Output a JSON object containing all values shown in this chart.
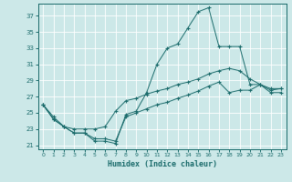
{
  "xlabel": "Humidex (Indice chaleur)",
  "bg_color": "#cce8e8",
  "grid_color": "#ffffff",
  "line_color": "#1a6b6b",
  "xlim": [
    -0.5,
    23.5
  ],
  "ylim": [
    20.5,
    38.5
  ],
  "xticks": [
    0,
    1,
    2,
    3,
    4,
    5,
    6,
    7,
    8,
    9,
    10,
    11,
    12,
    13,
    14,
    15,
    16,
    17,
    18,
    19,
    20,
    21,
    22,
    23
  ],
  "yticks": [
    21,
    23,
    25,
    27,
    29,
    31,
    33,
    35,
    37
  ],
  "curve1_x": [
    0,
    1,
    2,
    3,
    4,
    5,
    6,
    7,
    8,
    9,
    10,
    11,
    12,
    13,
    14,
    15,
    16,
    17,
    18,
    19,
    20,
    21,
    22,
    23
  ],
  "curve1_y": [
    26.0,
    24.2,
    23.3,
    22.5,
    22.5,
    21.5,
    21.5,
    21.2,
    24.8,
    25.2,
    27.5,
    31.0,
    33.0,
    33.5,
    35.5,
    37.5,
    38.0,
    33.2,
    33.2,
    33.2,
    28.5,
    28.5,
    27.5,
    27.5
  ],
  "curve2_x": [
    0,
    1,
    2,
    3,
    4,
    5,
    6,
    7,
    8,
    9,
    10,
    11,
    12,
    13,
    14,
    15,
    16,
    17,
    18,
    19,
    20,
    21,
    22,
    23
  ],
  "curve2_y": [
    26.0,
    24.5,
    23.3,
    23.0,
    23.0,
    23.0,
    23.3,
    25.2,
    26.5,
    26.8,
    27.3,
    27.7,
    28.0,
    28.5,
    28.8,
    29.2,
    29.8,
    30.2,
    30.5,
    30.2,
    29.2,
    28.5,
    28.0,
    28.0
  ],
  "curve3_x": [
    0,
    1,
    2,
    3,
    4,
    5,
    6,
    7,
    8,
    9,
    10,
    11,
    12,
    13,
    14,
    15,
    16,
    17,
    18,
    19,
    20,
    21,
    22,
    23
  ],
  "curve3_y": [
    26.0,
    24.2,
    23.3,
    22.5,
    22.5,
    21.8,
    21.8,
    21.5,
    24.5,
    25.0,
    25.5,
    26.0,
    26.3,
    26.8,
    27.2,
    27.7,
    28.3,
    28.8,
    27.5,
    27.8,
    27.8,
    28.5,
    27.8,
    28.0
  ]
}
